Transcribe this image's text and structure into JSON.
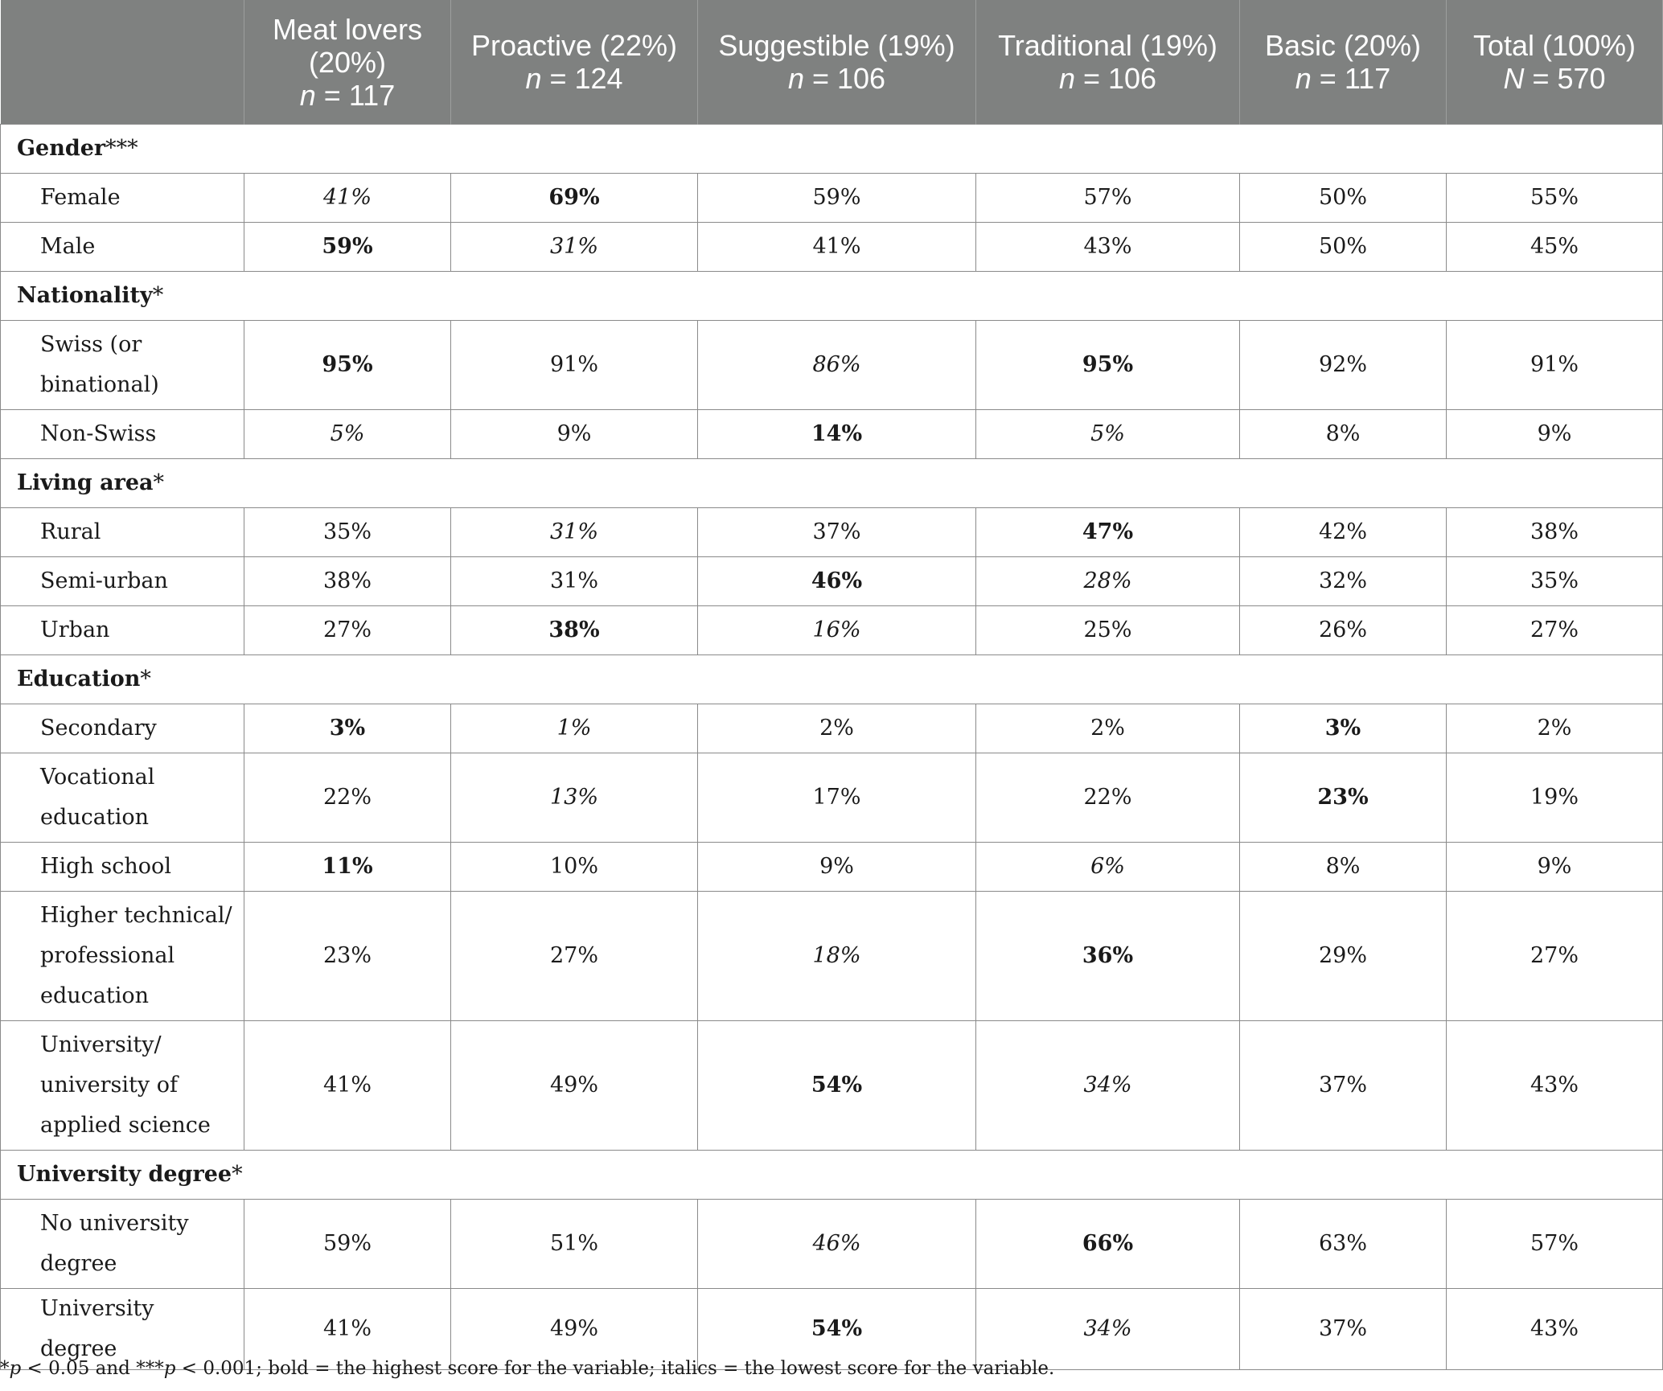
{
  "header": {
    "columns": [
      {
        "lines": [
          "Meat lovers",
          "(20%)"
        ],
        "n_symbol": "n",
        "n_text": " = 117"
      },
      {
        "lines": [
          "Proactive (22%)"
        ],
        "n_symbol": "n",
        "n_text": " = 124"
      },
      {
        "lines": [
          "Suggestible (19%)"
        ],
        "n_symbol": "n",
        "n_text": " = 106"
      },
      {
        "lines": [
          "Traditional (19%)"
        ],
        "n_symbol": "n",
        "n_text": " = 106"
      },
      {
        "lines": [
          "Basic (20%)"
        ],
        "n_symbol": "n",
        "n_text": " = 117"
      },
      {
        "lines": [
          "Total (100%)"
        ],
        "n_symbol": "N",
        "n_text": " = 570"
      }
    ]
  },
  "sections": [
    {
      "label": "Gender",
      "sig": "***",
      "rows": [
        {
          "label": [
            "Female"
          ],
          "values": [
            "41%",
            "69%",
            "59%",
            "57%",
            "50%",
            "55%"
          ],
          "styles": [
            "i",
            "b",
            "",
            "",
            "",
            ""
          ]
        },
        {
          "label": [
            "Male"
          ],
          "values": [
            "59%",
            "31%",
            "41%",
            "43%",
            "50%",
            "45%"
          ],
          "styles": [
            "b",
            "i",
            "",
            "",
            "",
            ""
          ]
        }
      ]
    },
    {
      "label": "Nationality",
      "sig": "*",
      "rows": [
        {
          "label": [
            "Swiss (or",
            "binational)"
          ],
          "values": [
            "95%",
            "91%",
            "86%",
            "95%",
            "92%",
            "91%"
          ],
          "styles": [
            "b",
            "",
            "i",
            "b",
            "",
            ""
          ]
        },
        {
          "label": [
            "Non-Swiss"
          ],
          "values": [
            "5%",
            "9%",
            "14%",
            "5%",
            "8%",
            "9%"
          ],
          "styles": [
            "i",
            "",
            "b",
            "i",
            "",
            ""
          ]
        }
      ]
    },
    {
      "label": "Living area",
      "sig": "*",
      "rows": [
        {
          "label": [
            "Rural"
          ],
          "values": [
            "35%",
            "31%",
            "37%",
            "47%",
            "42%",
            "38%"
          ],
          "styles": [
            "",
            "i",
            "",
            "b",
            "",
            ""
          ]
        },
        {
          "label": [
            "Semi-urban"
          ],
          "values": [
            "38%",
            "31%",
            "46%",
            "28%",
            "32%",
            "35%"
          ],
          "styles": [
            "",
            "",
            "b",
            "i",
            "",
            ""
          ]
        },
        {
          "label": [
            "Urban"
          ],
          "values": [
            "27%",
            "38%",
            "16%",
            "25%",
            "26%",
            "27%"
          ],
          "styles": [
            "",
            "b",
            "i",
            "",
            "",
            ""
          ]
        }
      ]
    },
    {
      "label": "Education",
      "sig": "*",
      "rows": [
        {
          "label": [
            "Secondary"
          ],
          "values": [
            "3%",
            "1%",
            "2%",
            "2%",
            "3%",
            "2%"
          ],
          "styles": [
            "b",
            "i",
            "",
            "",
            "b",
            ""
          ]
        },
        {
          "label": [
            "Vocational",
            "education"
          ],
          "values": [
            "22%",
            "13%",
            "17%",
            "22%",
            "23%",
            "19%"
          ],
          "styles": [
            "",
            "i",
            "",
            "",
            "b",
            ""
          ]
        },
        {
          "label": [
            "High school"
          ],
          "values": [
            "11%",
            "10%",
            "9%",
            "6%",
            "8%",
            "9%"
          ],
          "styles": [
            "b",
            "",
            "",
            "i",
            "",
            ""
          ]
        },
        {
          "label": [
            "Higher technical/",
            "professional",
            "education"
          ],
          "values": [
            "23%",
            "27%",
            "18%",
            "36%",
            "29%",
            "27%"
          ],
          "styles": [
            "",
            "",
            "i",
            "b",
            "",
            ""
          ]
        },
        {
          "label": [
            "University/",
            "university of",
            "applied science"
          ],
          "values": [
            "41%",
            "49%",
            "54%",
            "34%",
            "37%",
            "43%"
          ],
          "styles": [
            "",
            "",
            "b",
            "i",
            "",
            ""
          ]
        }
      ]
    },
    {
      "label": "University degree",
      "sig": "*",
      "rows": [
        {
          "label": [
            "No university",
            "degree"
          ],
          "values": [
            "59%",
            "51%",
            "46%",
            "66%",
            "63%",
            "57%"
          ],
          "styles": [
            "",
            "",
            "i",
            "b",
            "",
            ""
          ]
        },
        {
          "label": [
            "University degree"
          ],
          "values": [
            "41%",
            "49%",
            "54%",
            "34%",
            "37%",
            "43%"
          ],
          "styles": [
            "",
            "",
            "b",
            "i",
            "",
            ""
          ]
        }
      ]
    }
  ],
  "note": {
    "p1_prefix": "*",
    "p1_symbol": "p",
    "p1_text": " < 0.05 and ***",
    "p2_symbol": "p",
    "p2_text": " < 0.001; bold = the highest score for the variable; italics = the lowest score for the variable."
  }
}
